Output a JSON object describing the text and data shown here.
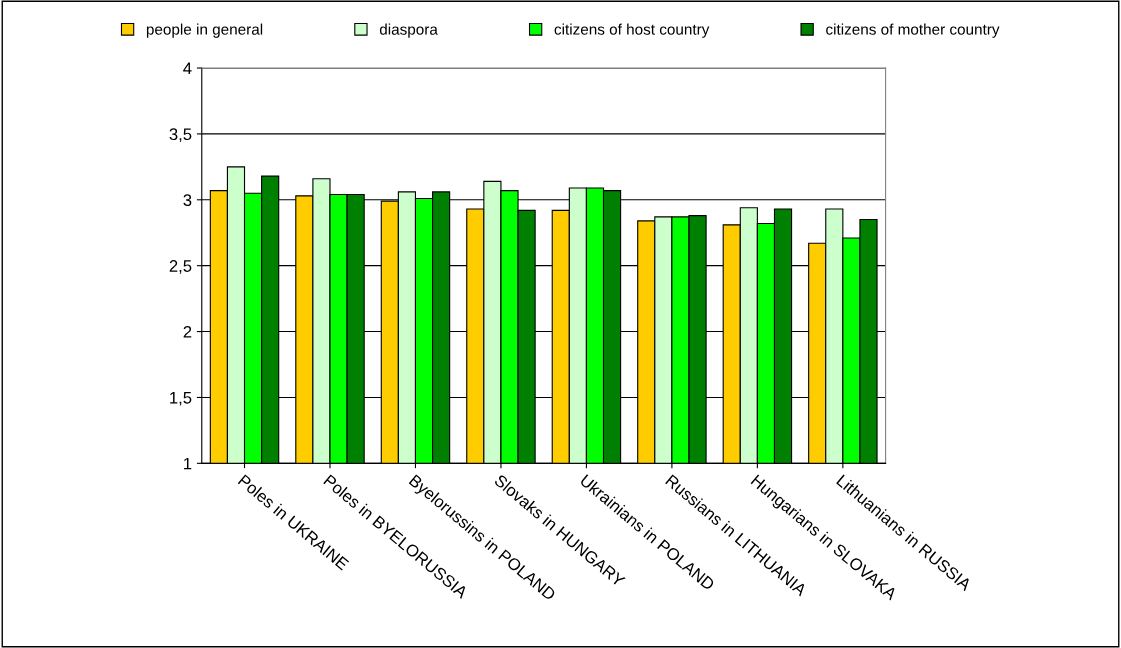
{
  "chart_data": {
    "type": "bar",
    "categories": [
      "Poles in UKRAINE",
      "Poles in BYELORUSSIA",
      "Byelorussins in POLAND",
      "Slovaks in HUNGARY",
      "Ukrainians in POLAND",
      "Russians in LITHUANIA",
      "Hungarians in SLOVAKA",
      "Lithuanians in RUSSIA"
    ],
    "series": [
      {
        "name": "people in general",
        "color": "#ffcc00",
        "values": [
          3.07,
          3.03,
          2.99,
          2.93,
          2.92,
          2.84,
          2.81,
          2.67
        ]
      },
      {
        "name": "diaspora",
        "color": "#ccffcc",
        "values": [
          3.25,
          3.16,
          3.06,
          3.14,
          3.09,
          2.87,
          2.94,
          2.93
        ]
      },
      {
        "name": "citizens of host country",
        "color": "#00ff00",
        "values": [
          3.05,
          3.04,
          3.01,
          3.07,
          3.09,
          2.87,
          2.82,
          2.71
        ]
      },
      {
        "name": "citizens of mother country",
        "color": "#008000",
        "values": [
          3.18,
          3.04,
          3.06,
          2.92,
          3.07,
          2.88,
          2.93,
          2.85
        ]
      }
    ],
    "ylim": [
      1,
      4
    ],
    "yticks": [
      1,
      {
        "value": 1.5,
        "label": "1,5"
      },
      2,
      {
        "value": 2.5,
        "label": "2,5"
      },
      3,
      {
        "value": 3.5,
        "label": "3,5"
      },
      4
    ],
    "grid": "y",
    "legend": "top"
  }
}
